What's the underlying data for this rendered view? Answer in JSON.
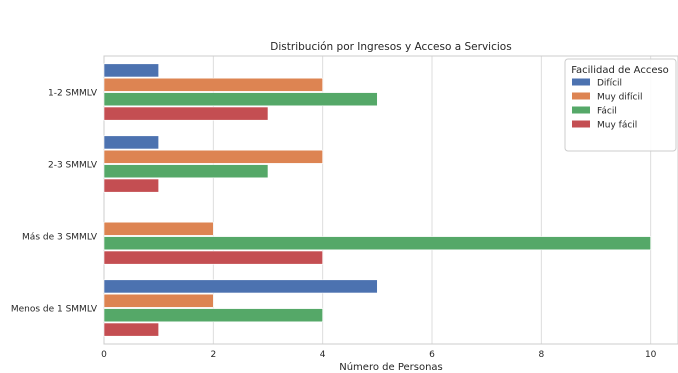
{
  "chart_data": {
    "type": "bar",
    "orientation": "horizontal",
    "title": "Distribución por Ingresos y Acceso a Servicios",
    "xlabel": "Número de Personas",
    "ylabel": "",
    "xlim": [
      0,
      10.5
    ],
    "xticks": [
      0,
      2,
      4,
      6,
      8,
      10
    ],
    "grid": true,
    "legend_position": "top-right",
    "legend_title": "Facilidad de Acceso",
    "categories": [
      "1-2 SMMLV",
      "2-3 SMMLV",
      "Más de 3 SMMLV",
      "Menos de 1 SMMLV"
    ],
    "series": [
      {
        "name": "Difícil",
        "color": "#4c72b0",
        "values": [
          1,
          1,
          0,
          5
        ]
      },
      {
        "name": "Muy difícil",
        "color": "#dd8452",
        "values": [
          4,
          4,
          2,
          2
        ]
      },
      {
        "name": "Fácil",
        "color": "#55a868",
        "values": [
          5,
          3,
          10,
          4
        ]
      },
      {
        "name": "Muy fácil",
        "color": "#c44e52",
        "values": [
          3,
          1,
          4,
          1
        ]
      }
    ]
  }
}
